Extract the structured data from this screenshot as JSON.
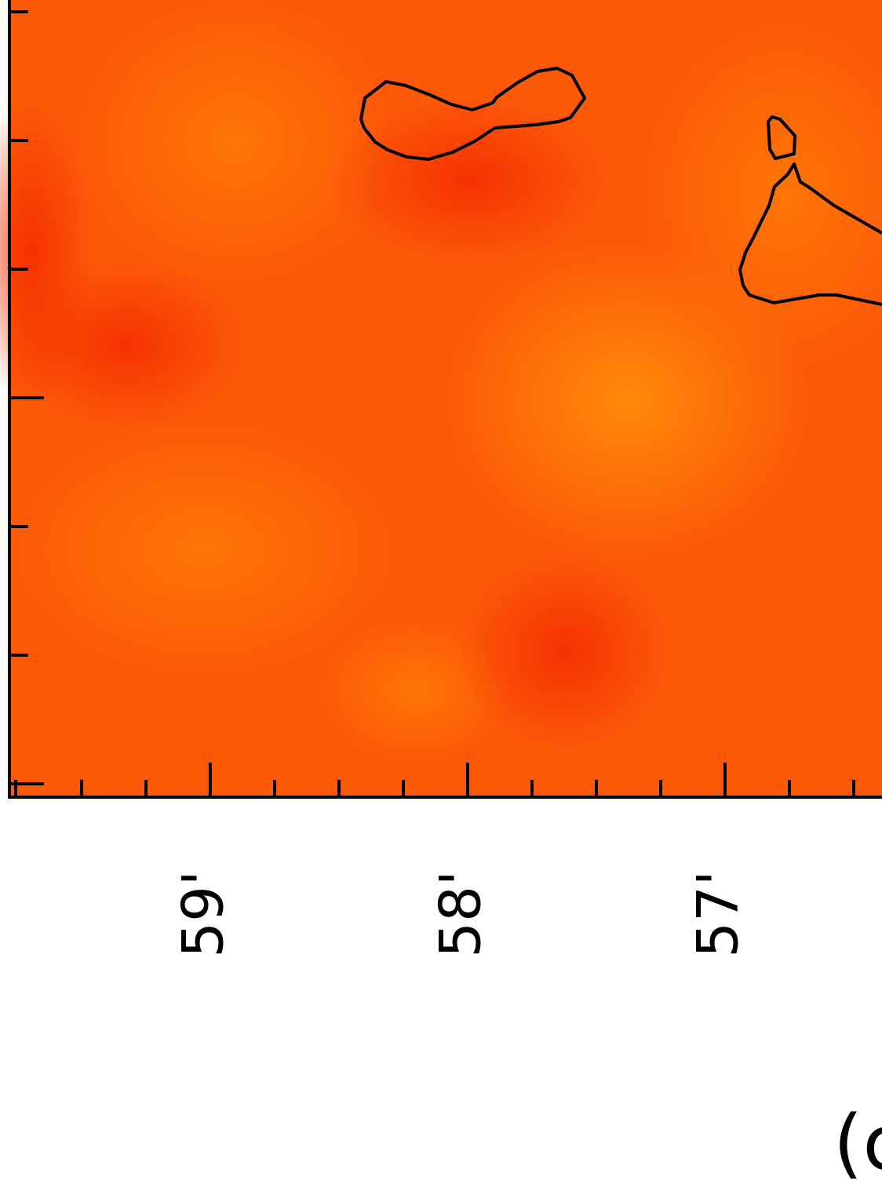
{
  "chart_data": {
    "type": "image",
    "xlim": [
      59.78,
      56.39
    ],
    "xticks": [
      {
        "value": 59,
        "label": "59'"
      },
      {
        "value": 58,
        "label": "58'"
      },
      {
        "value": 57,
        "label": "57'"
      }
    ],
    "panel_label": "(c"
  }
}
